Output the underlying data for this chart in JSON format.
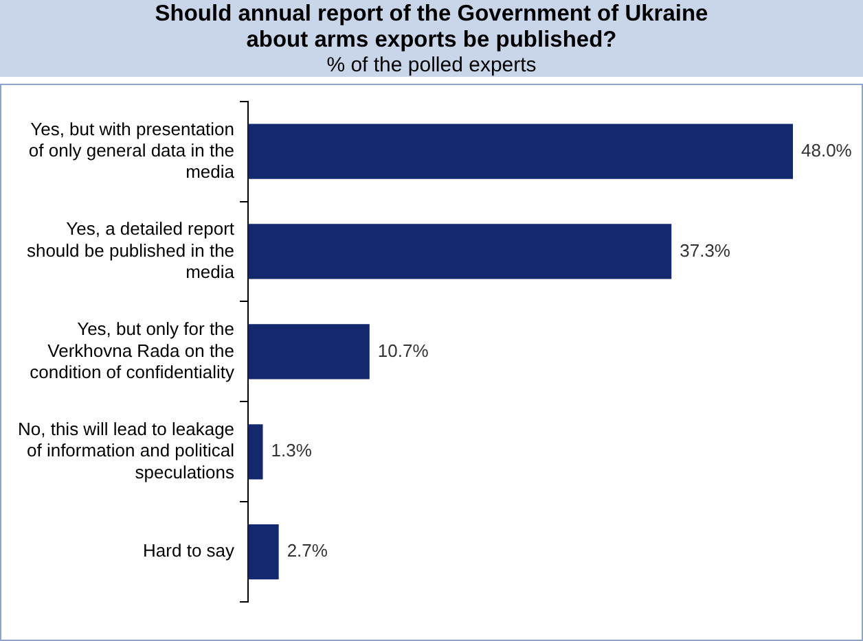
{
  "chart_data": {
    "type": "bar",
    "orientation": "horizontal",
    "title": "Should annual report of the Government of Ukraine about arms exports be published?",
    "subtitle": "% of the polled experts",
    "categories": [
      "Yes, but with presentation of only general data in the media",
      "Yes, a detailed report should be published in the media",
      "Yes, but only for the Verkhovna Rada on the condition of confidentiality",
      "No, this will lead to leakage of information and political speculations",
      "Hard to say"
    ],
    "values": [
      48.0,
      37.3,
      10.7,
      1.3,
      2.7
    ],
    "value_labels": [
      "48.0%",
      "37.3%",
      "10.7%",
      "1.3%",
      "2.7%"
    ],
    "color": "#14286e"
  }
}
